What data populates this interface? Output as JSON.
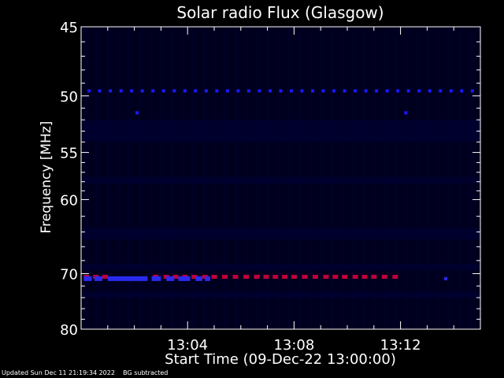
{
  "footer": {
    "updated": "Updated Sun Dec 11 21:19:34 2022",
    "note": "BG subtracted"
  },
  "chart_data": {
    "type": "heatmap",
    "title": "Solar radio Flux (Glasgow)",
    "xlabel": "Start Time (09-Dec-22 13:00:00)",
    "ylabel": "Frequency [MHz]",
    "x_unit": "minutes after 13:00:00",
    "xlim": [
      0.0,
      15.0
    ],
    "ylim": [
      45,
      80
    ],
    "y_scale": "reciprocal (1/frequency)",
    "x_tick_labels": [
      {
        "value": 4.0,
        "label": "13:04"
      },
      {
        "value": 8.0,
        "label": "13:08"
      },
      {
        "value": 12.0,
        "label": "13:12"
      }
    ],
    "y_tick_labels": [
      45,
      50,
      55,
      60,
      70,
      80
    ],
    "x_minor_ticks": [
      1.0,
      2.0,
      3.0,
      5.0,
      6.0,
      7.0,
      9.0,
      10.0,
      11.0,
      13.0,
      14.0
    ],
    "grid": false,
    "colors": {
      "background": "#000000",
      "plot_background": "#00001e",
      "axes": "#ffffff",
      "stripe": "#00002c",
      "band": "#00003c",
      "blue_mark": "#1a1aff",
      "red_mark": "#c0003a",
      "deep_blue": "#2a2aee"
    },
    "series": [
      {
        "color": "#1a1aff",
        "freq": 49.6,
        "x": [
          0.3,
          0.7,
          1.1,
          1.5,
          1.9,
          2.3,
          2.7,
          3.1,
          3.5,
          3.9,
          4.3,
          4.7,
          5.1,
          5.5,
          5.9,
          6.3,
          6.7,
          7.1,
          7.5,
          7.9,
          8.3,
          8.7,
          9.1,
          9.5,
          9.9,
          10.3,
          10.7,
          11.1,
          11.5,
          11.9,
          12.3,
          12.7,
          13.1,
          13.5,
          13.9,
          14.3,
          14.7
        ]
      },
      {
        "color": "#1a1aff",
        "freq": 51.4,
        "x": [
          2.1,
          12.2
        ]
      },
      {
        "color": "#c0003a",
        "freq": 70.5,
        "x": [
          0.2,
          0.55,
          0.9,
          2.8,
          3.2,
          3.55,
          3.9,
          4.25,
          4.65,
          5.0,
          5.4,
          5.8,
          6.2,
          6.6,
          6.95,
          7.3,
          7.65,
          8.0,
          8.4,
          8.8,
          9.2,
          9.55,
          9.9,
          10.3,
          10.65,
          11.0,
          11.4,
          11.8
        ]
      },
      {
        "color": "#2a2aee",
        "freq": 70.8,
        "x_ranges": [
          [
            0.1,
            0.4
          ],
          [
            0.5,
            0.8
          ],
          [
            1.0,
            2.5
          ],
          [
            2.65,
            3.0
          ],
          [
            3.2,
            3.5
          ],
          [
            3.65,
            4.1
          ],
          [
            4.3,
            4.55
          ],
          [
            4.65,
            4.85
          ]
        ],
        "x": [
          13.7
        ]
      }
    ]
  }
}
